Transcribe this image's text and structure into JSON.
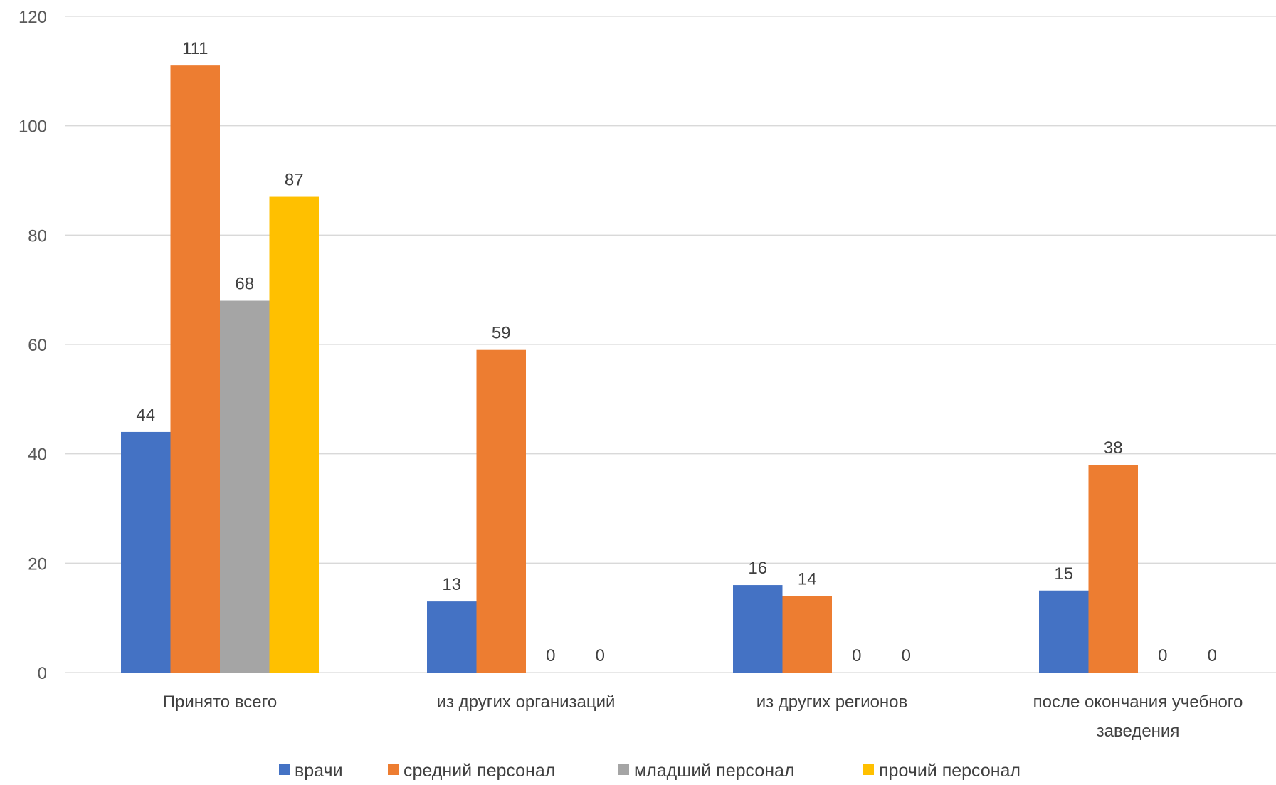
{
  "chart_data": {
    "type": "bar",
    "title": "",
    "xlabel": "",
    "ylabel": "",
    "categories": [
      [
        "Принято всего"
      ],
      [
        "из других организаций"
      ],
      [
        "из других регионов"
      ],
      [
        "после окончания учебного",
        "заведения"
      ]
    ],
    "series": [
      {
        "name": "врачи",
        "color": "#4472C4",
        "values": [
          44,
          13,
          16,
          15
        ]
      },
      {
        "name": "средний персонал",
        "color": "#ED7D31",
        "values": [
          111,
          59,
          14,
          38
        ]
      },
      {
        "name": "младший персонал",
        "color": "#A5A5A5",
        "values": [
          68,
          0,
          0,
          0
        ]
      },
      {
        "name": "прочий персонал",
        "color": "#FFC000",
        "values": [
          87,
          0,
          0,
          0
        ]
      }
    ],
    "ylim": [
      0,
      120
    ],
    "yticks": [
      0,
      20,
      40,
      60,
      80,
      100,
      120
    ],
    "grid": true,
    "legend_position": "bottom",
    "data_labels": true
  }
}
